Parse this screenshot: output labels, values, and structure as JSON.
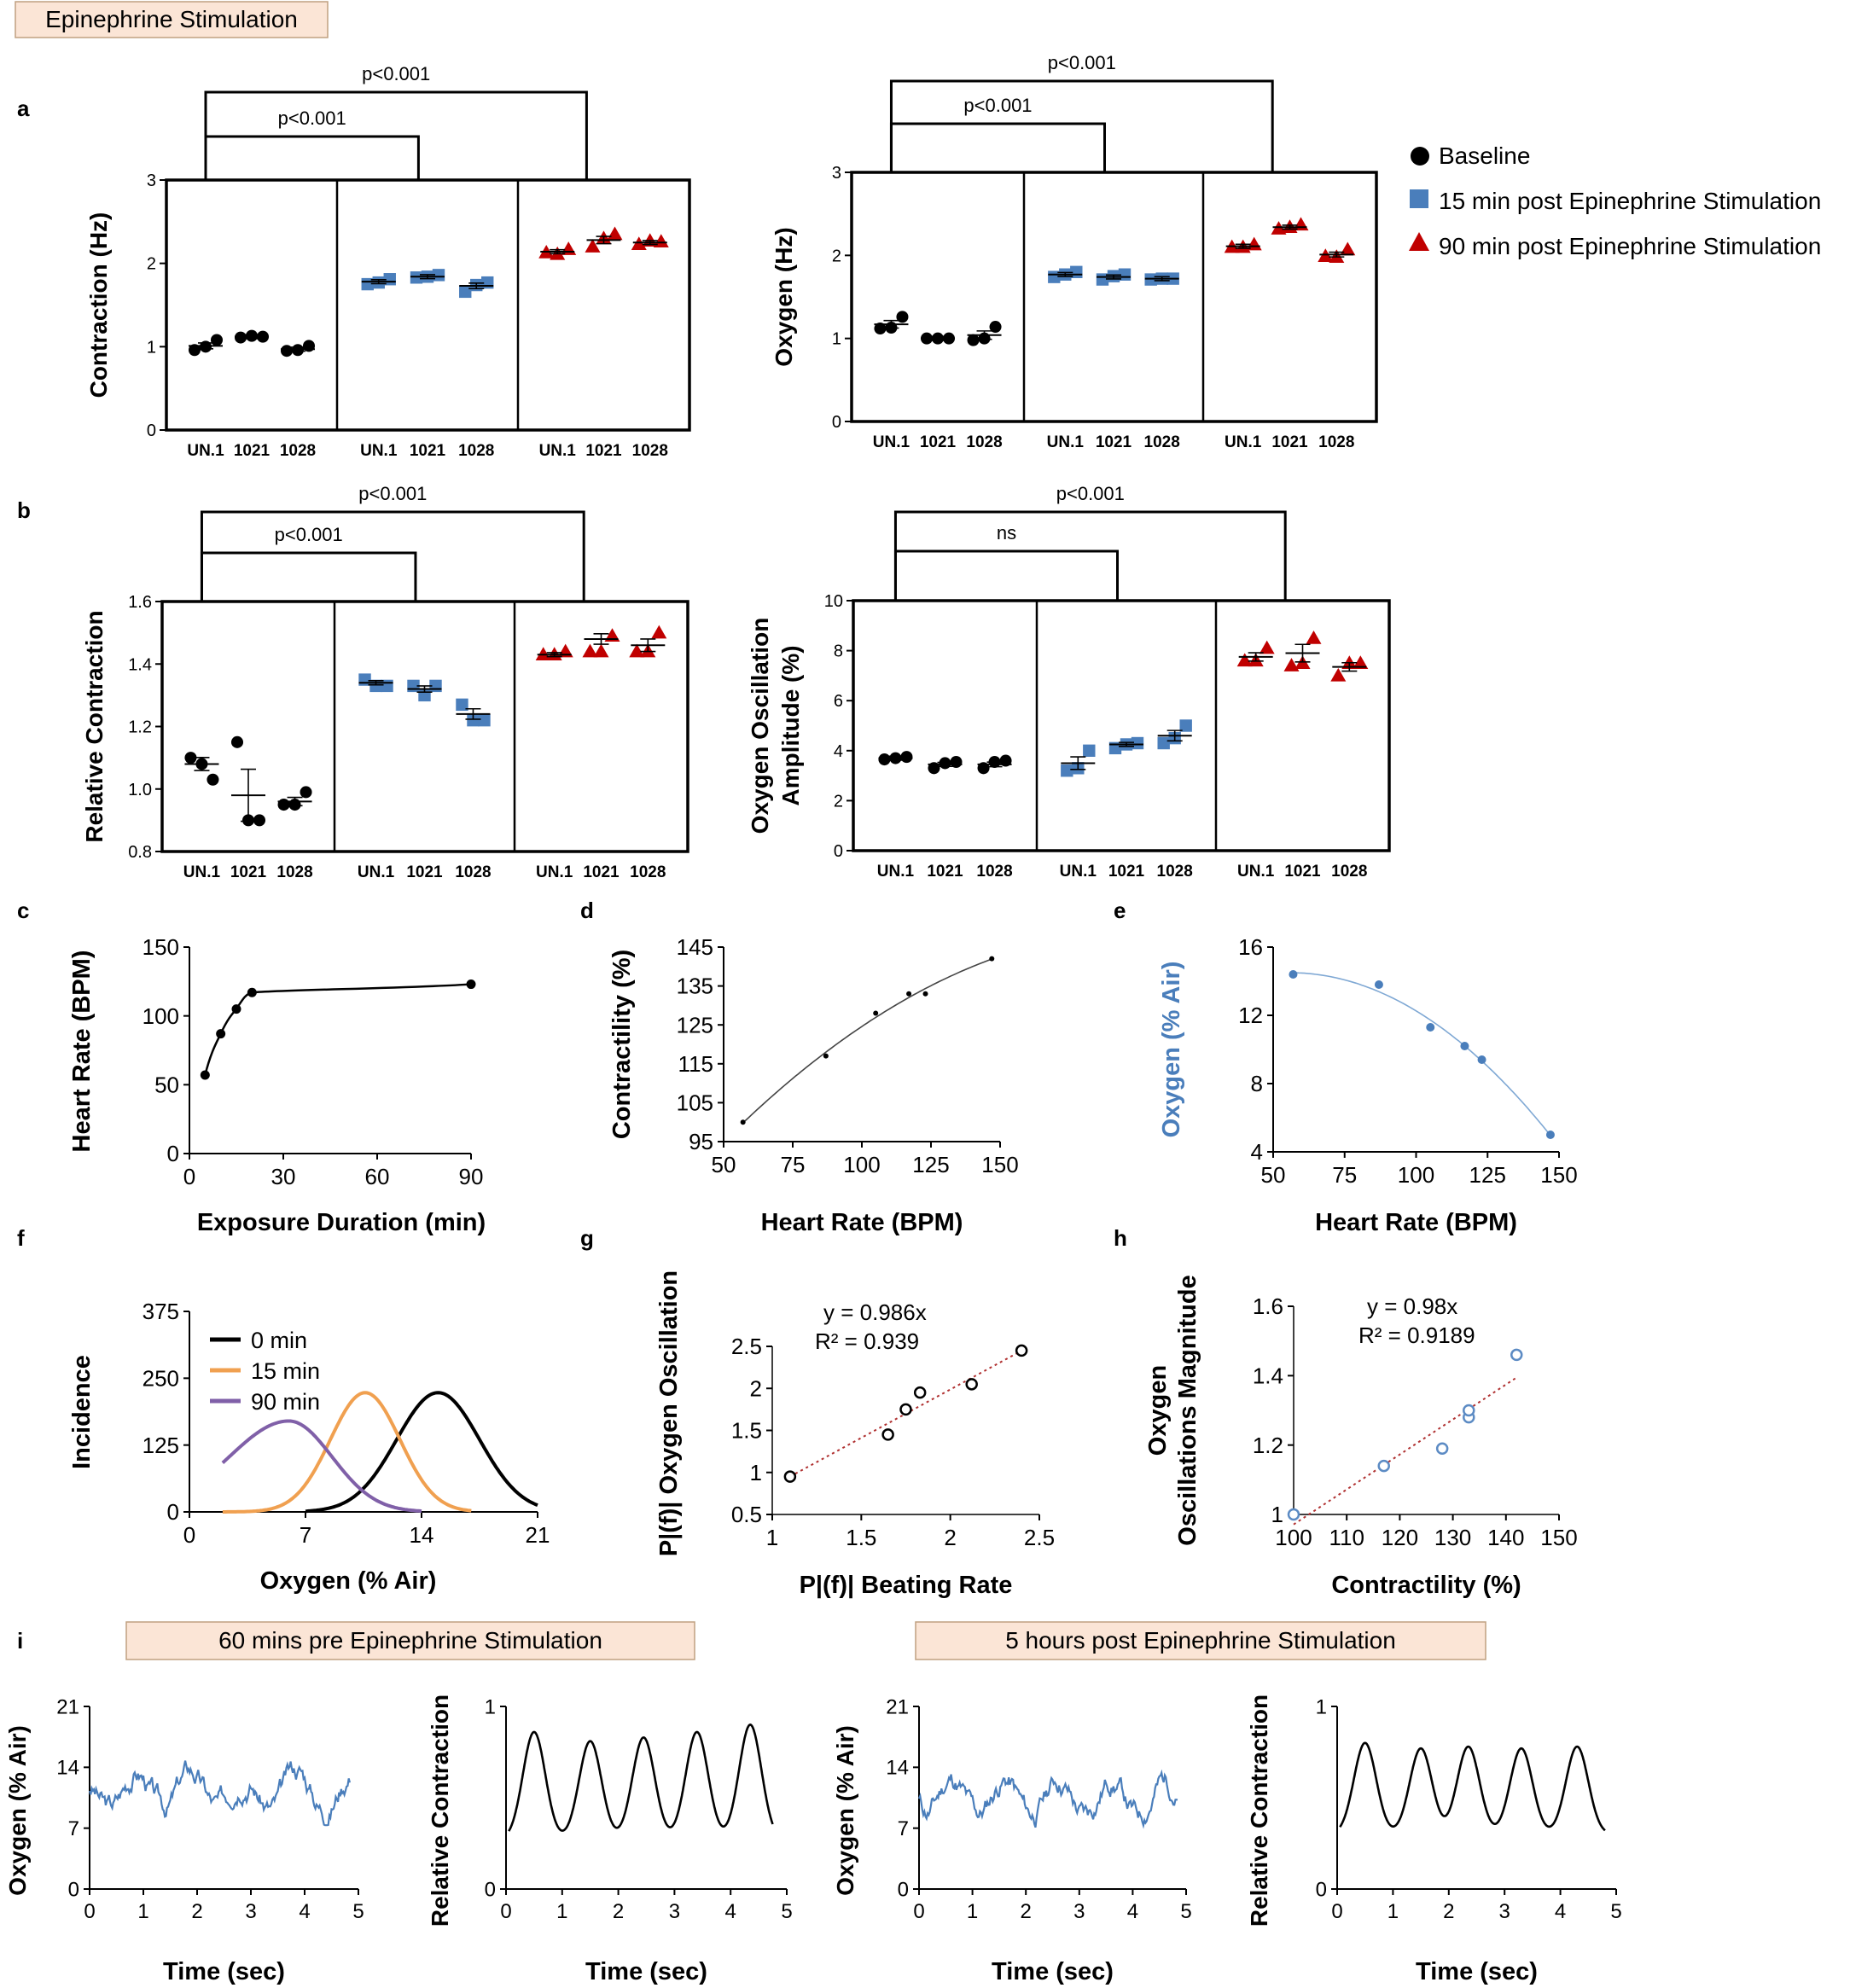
{
  "header": {
    "title": "Epinephrine Stimulation"
  },
  "legend": {
    "items": [
      {
        "label": "Baseline",
        "marker": "circle",
        "color": "#000000"
      },
      {
        "label": "15 min post Epinephrine Stimulation",
        "marker": "square",
        "color": "#4A7EBB"
      },
      {
        "label": "90 min post Epinephrine Stimulation",
        "marker": "triangle",
        "color": "#C00000"
      }
    ]
  },
  "colors": {
    "baseline": "#000000",
    "post15": "#4A7EBB",
    "post90": "#C00000",
    "orange": "#F0A050",
    "purple": "#8060A8",
    "trend": "#B03030",
    "header_fill": "#FBE5D6"
  },
  "chart_data": [
    {
      "id": "a1",
      "panel_label": "a",
      "type": "scatter",
      "ylabel": "Contraction (Hz)",
      "ylim": [
        0,
        3
      ],
      "yticks": [
        "0",
        "1",
        "2",
        "3"
      ],
      "group_labels": [
        "UN.1",
        "1021",
        "1028"
      ],
      "groups": [
        {
          "name": "Baseline",
          "points": [
            [
              0.96,
              1.0,
              1.08
            ],
            [
              1.11,
              1.13,
              1.12
            ],
            [
              0.95,
              0.96,
              1.01
            ]
          ],
          "means": [
            1.01,
            1.12,
            0.97
          ]
        },
        {
          "name": "15 min post Epinephrine Stimulation",
          "points": [
            [
              1.75,
              1.77,
              1.81
            ],
            [
              1.83,
              1.84,
              1.86
            ],
            [
              1.66,
              1.74,
              1.77
            ]
          ],
          "means": [
            1.78,
            1.84,
            1.73
          ]
        },
        {
          "name": "90 min post Epinephrine Stimulation",
          "points": [
            [
              2.13,
              2.11,
              2.17
            ],
            [
              2.2,
              2.3,
              2.35
            ],
            [
              2.23,
              2.27,
              2.26
            ]
          ],
          "means": [
            2.14,
            2.28,
            2.25
          ]
        }
      ],
      "brackets": [
        {
          "text": "p<0.001"
        },
        {
          "text": "p<0.001"
        }
      ]
    },
    {
      "id": "a2",
      "type": "scatter",
      "ylabel": "Oxygen (Hz)",
      "ylim": [
        0,
        3
      ],
      "yticks": [
        "0",
        "1",
        "2",
        "3"
      ],
      "group_labels": [
        "UN.1",
        "1021",
        "1028"
      ],
      "groups": [
        {
          "name": "Baseline",
          "points": [
            [
              1.12,
              1.13,
              1.26
            ],
            [
              1.0,
              1.0,
              1.0
            ],
            [
              0.98,
              1.0,
              1.14
            ]
          ],
          "means": [
            1.17,
            1.0,
            1.04
          ]
        },
        {
          "name": "15 min post Epinephrine Stimulation",
          "points": [
            [
              1.74,
              1.77,
              1.8
            ],
            [
              1.71,
              1.75,
              1.77
            ],
            [
              1.71,
              1.72,
              1.72
            ]
          ],
          "means": [
            1.77,
            1.74,
            1.72
          ]
        },
        {
          "name": "90 min post Epinephrine Stimulation",
          "points": [
            [
              2.1,
              2.1,
              2.13
            ],
            [
              2.32,
              2.34,
              2.37
            ],
            [
              1.99,
              1.98,
              2.07
            ]
          ],
          "means": [
            2.11,
            2.34,
            2.01
          ]
        }
      ],
      "brackets": [
        {
          "text": "p<0.001"
        },
        {
          "text": "p<0.001"
        }
      ]
    },
    {
      "id": "b1",
      "panel_label": "b",
      "type": "scatter",
      "ylabel": "Relative Contraction",
      "ylim": [
        0.8,
        1.6
      ],
      "yticks": [
        "0.8",
        "1.0",
        "1.2",
        "1.4",
        "1.6"
      ],
      "group_labels": [
        "UN.1",
        "1021",
        "1028"
      ],
      "groups": [
        {
          "name": "Baseline",
          "points": [
            [
              1.1,
              1.08,
              1.03
            ],
            [
              1.15,
              0.9,
              0.9
            ],
            [
              0.95,
              0.95,
              0.99
            ]
          ],
          "means": [
            1.08,
            0.98,
            0.96
          ]
        },
        {
          "name": "15 min post Epinephrine Stimulation",
          "points": [
            [
              1.35,
              1.33,
              1.33
            ],
            [
              1.33,
              1.3,
              1.33
            ],
            [
              1.27,
              1.22,
              1.22
            ]
          ],
          "means": [
            1.34,
            1.32,
            1.24
          ]
        },
        {
          "name": "90 min post Epinephrine Stimulation",
          "points": [
            [
              1.43,
              1.43,
              1.44
            ],
            [
              1.44,
              1.44,
              1.49
            ],
            [
              1.44,
              1.44,
              1.5
            ]
          ],
          "means": [
            1.43,
            1.48,
            1.46
          ]
        }
      ],
      "brackets": [
        {
          "text": "p<0.001"
        },
        {
          "text": "p<0.001"
        }
      ]
    },
    {
      "id": "b2",
      "type": "scatter",
      "ylabel": "Oxygen Oscillation Amplitude (%)",
      "ylabel_lines": [
        "Oxygen Oscillation",
        "Amplitude (%)"
      ],
      "ylim": [
        0,
        10
      ],
      "yticks": [
        "0",
        "2",
        "4",
        "6",
        "8",
        "10"
      ],
      "group_labels": [
        "UN.1",
        "1021",
        "1028"
      ],
      "groups": [
        {
          "name": "Baseline",
          "points": [
            [
              3.65,
              3.7,
              3.75
            ],
            [
              3.3,
              3.5,
              3.55
            ],
            [
              3.3,
              3.55,
              3.6
            ]
          ],
          "means": [
            3.7,
            3.45,
            3.45
          ]
        },
        {
          "name": "15 min post Epinephrine Stimulation",
          "points": [
            [
              3.2,
              3.3,
              4.0
            ],
            [
              4.1,
              4.25,
              4.3
            ],
            [
              4.3,
              4.5,
              5.0
            ]
          ],
          "means": [
            3.5,
            4.25,
            4.6
          ]
        },
        {
          "name": "90 min post Epinephrine Stimulation",
          "points": [
            [
              7.6,
              7.6,
              8.1
            ],
            [
              7.4,
              7.5,
              8.5
            ],
            [
              7.0,
              7.5,
              7.5
            ]
          ],
          "means": [
            7.75,
            7.9,
            7.35
          ]
        }
      ],
      "brackets": [
        {
          "text": "ns"
        },
        {
          "text": "p<0.001"
        }
      ]
    },
    {
      "id": "c",
      "panel_label": "c",
      "type": "line",
      "xlabel": "Exposure Duration (min)",
      "ylabel": "Heart Rate (BPM)",
      "xlim": [
        0,
        90
      ],
      "ylim": [
        0,
        150
      ],
      "xticks": [
        "0",
        "30",
        "60",
        "90"
      ],
      "yticks": [
        "0",
        "50",
        "100",
        "150"
      ],
      "x": [
        5,
        10,
        15,
        20,
        90
      ],
      "y": [
        57,
        87,
        105,
        117,
        123
      ]
    },
    {
      "id": "d",
      "panel_label": "d",
      "type": "scatter",
      "xlabel": "Heart Rate (BPM)",
      "ylabel": "Contractility (%)",
      "xlim": [
        50,
        150
      ],
      "ylim": [
        95,
        145
      ],
      "xticks": [
        "50",
        "75",
        "100",
        "125",
        "150"
      ],
      "yticks": [
        "95",
        "105",
        "115",
        "125",
        "135",
        "145"
      ],
      "x": [
        57,
        87,
        105,
        117,
        123,
        147
      ],
      "y": [
        100,
        117,
        128,
        133,
        133,
        142
      ]
    },
    {
      "id": "e",
      "panel_label": "e",
      "type": "scatter",
      "xlabel": "Heart Rate (BPM)",
      "ylabel": "Oxygen (% Air)",
      "xlim": [
        50,
        150
      ],
      "ylim": [
        4,
        16
      ],
      "xticks": [
        "50",
        "75",
        "100",
        "125",
        "150"
      ],
      "yticks": [
        "4",
        "8",
        "12",
        "16"
      ],
      "x": [
        57,
        87,
        105,
        117,
        123,
        147
      ],
      "y": [
        14.4,
        13.8,
        11.3,
        10.2,
        9.4,
        5.0
      ]
    },
    {
      "id": "f",
      "panel_label": "f",
      "type": "line",
      "xlabel": "Oxygen (% Air)",
      "ylabel": "Incidence",
      "xlim": [
        0,
        21
      ],
      "ylim": [
        0,
        375
      ],
      "xticks": [
        "0",
        "7",
        "14",
        "21"
      ],
      "yticks": [
        "0",
        "125",
        "250",
        "375"
      ],
      "series": [
        {
          "name": "0 min",
          "mean": 15,
          "sd": 2.5,
          "peak": 223
        },
        {
          "name": "15 min",
          "mean": 10.6,
          "sd": 2.1,
          "peak": 223
        },
        {
          "name": "90 min",
          "mean": 6.0,
          "sd": 2.6,
          "peak": 170
        }
      ]
    },
    {
      "id": "g",
      "panel_label": "g",
      "type": "scatter",
      "xlabel": "P|(f)| Beating Rate",
      "ylabel": "P|(f)| Oxygen Oscillation",
      "xlim": [
        1,
        2.5
      ],
      "ylim": [
        0.5,
        2.5
      ],
      "xticks": [
        "1",
        "1.5",
        "2",
        "2.5"
      ],
      "yticks": [
        "0.5",
        "1",
        "1.5",
        "2",
        "2.5"
      ],
      "x": [
        1.1,
        1.65,
        1.75,
        1.83,
        2.12,
        2.4
      ],
      "y": [
        0.95,
        1.45,
        1.75,
        1.95,
        2.05,
        2.45
      ],
      "equation": "y = 0.986x",
      "r2": "R² = 0.939"
    },
    {
      "id": "h",
      "panel_label": "h",
      "type": "scatter",
      "xlabel": "Contractility (%)",
      "ylabel": "Oxygen Oscillations Magnitude",
      "ylabel_lines": [
        "Oxygen",
        "Oscillations Magnitude"
      ],
      "xlim": [
        100,
        150
      ],
      "ylim": [
        1,
        1.6
      ],
      "xticks": [
        "100",
        "110",
        "120",
        "130",
        "140",
        "150"
      ],
      "yticks": [
        "1",
        "1.2",
        "1.4",
        "1.6"
      ],
      "x": [
        100,
        117,
        128,
        133,
        133,
        142
      ],
      "y": [
        1.0,
        1.14,
        1.19,
        1.28,
        1.3,
        1.46
      ],
      "equation": "y = 0.98x",
      "r2": "R² = 0.9189"
    },
    {
      "id": "i",
      "panel_label": "i",
      "type": "line",
      "headers": [
        "60 mins pre Epinephrine Stimulation",
        "5 hours post Epinephrine Stimulation"
      ],
      "plots": [
        {
          "ylabel": "Oxygen (% Air)",
          "xlabel": "Time (sec)",
          "xticks": [
            "0",
            "1",
            "2",
            "3",
            "4",
            "5"
          ],
          "yticks": [
            "0",
            "7",
            "14",
            "21"
          ],
          "ylim": [
            0,
            21
          ],
          "xlim": [
            0,
            5
          ],
          "kind": "oxygen",
          "seed": 3,
          "base": 11.5,
          "amp": 3.2,
          "xend": 4.85
        },
        {
          "ylabel": "Relative Contraction",
          "xlabel": "Time (sec)",
          "xticks": [
            "0",
            "1",
            "2",
            "3",
            "4",
            "5"
          ],
          "yticks": [
            "0",
            "1"
          ],
          "ylim": [
            0,
            1
          ],
          "xlim": [
            0,
            5
          ],
          "kind": "contraction",
          "peaks": [
            0.5,
            1.5,
            2.45,
            3.4,
            4.35
          ],
          "heights": [
            0.86,
            0.81,
            0.83,
            0.86,
            0.9
          ],
          "low": 0.27,
          "xstart": 0.05,
          "xend": 4.75
        },
        {
          "ylabel": "Oxygen (% Air)",
          "xlabel": "Time (sec)",
          "xticks": [
            "0",
            "1",
            "2",
            "3",
            "4",
            "5"
          ],
          "yticks": [
            "0",
            "7",
            "14",
            "21"
          ],
          "ylim": [
            0,
            21
          ],
          "xlim": [
            0,
            5
          ],
          "kind": "oxygen",
          "seed": 11,
          "base": 10.5,
          "amp": 3.8,
          "xend": 4.85
        },
        {
          "ylabel": "Relative Contraction",
          "xlabel": "Time (sec)",
          "xticks": [
            "0",
            "1",
            "2",
            "3",
            "4",
            "5"
          ],
          "yticks": [
            "0",
            "1"
          ],
          "ylim": [
            0,
            1
          ],
          "xlim": [
            0,
            5
          ],
          "kind": "contraction",
          "peaks": [
            0.5,
            1.5,
            2.35,
            3.3,
            4.3
          ],
          "heights": [
            0.8,
            0.77,
            0.78,
            0.77,
            0.78
          ],
          "low": 0.3,
          "xstart": 0.05,
          "xend": 4.8
        }
      ]
    }
  ]
}
